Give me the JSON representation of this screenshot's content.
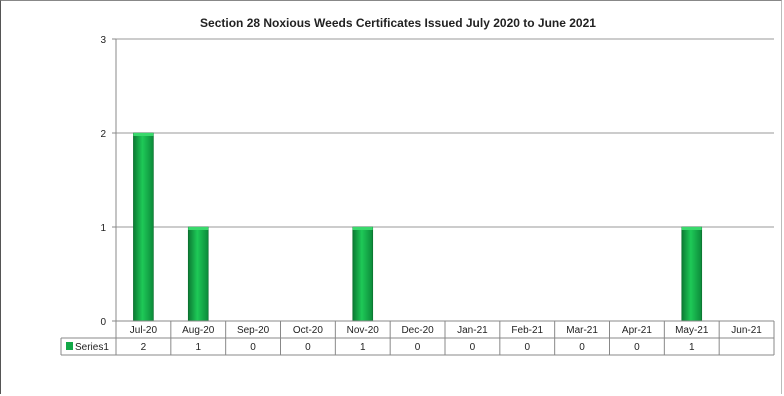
{
  "chart_data": {
    "type": "bar",
    "title": "Section 28 Noxious Weeds Certificates Issued July 2020 to June 2021",
    "xlabel": "",
    "ylabel": "",
    "categories": [
      "Jul-20",
      "Aug-20",
      "Sep-20",
      "Oct-20",
      "Nov-20",
      "Dec-20",
      "Jan-21",
      "Feb-21",
      "Mar-21",
      "Apr-21",
      "May-21",
      "Jun-21"
    ],
    "series": [
      {
        "name": "Series1",
        "values": [
          2,
          1,
          0,
          0,
          1,
          0,
          0,
          0,
          0,
          0,
          1,
          null
        ],
        "table_labels": [
          "2",
          "1",
          "0",
          "0",
          "1",
          "0",
          "0",
          "0",
          "0",
          "0",
          "1",
          ""
        ]
      }
    ],
    "ylim": [
      0,
      3
    ],
    "yticks": [
      "0",
      "1",
      "2",
      "3"
    ],
    "grid": true,
    "legend": "data-table",
    "bar_color": "#12a847"
  }
}
